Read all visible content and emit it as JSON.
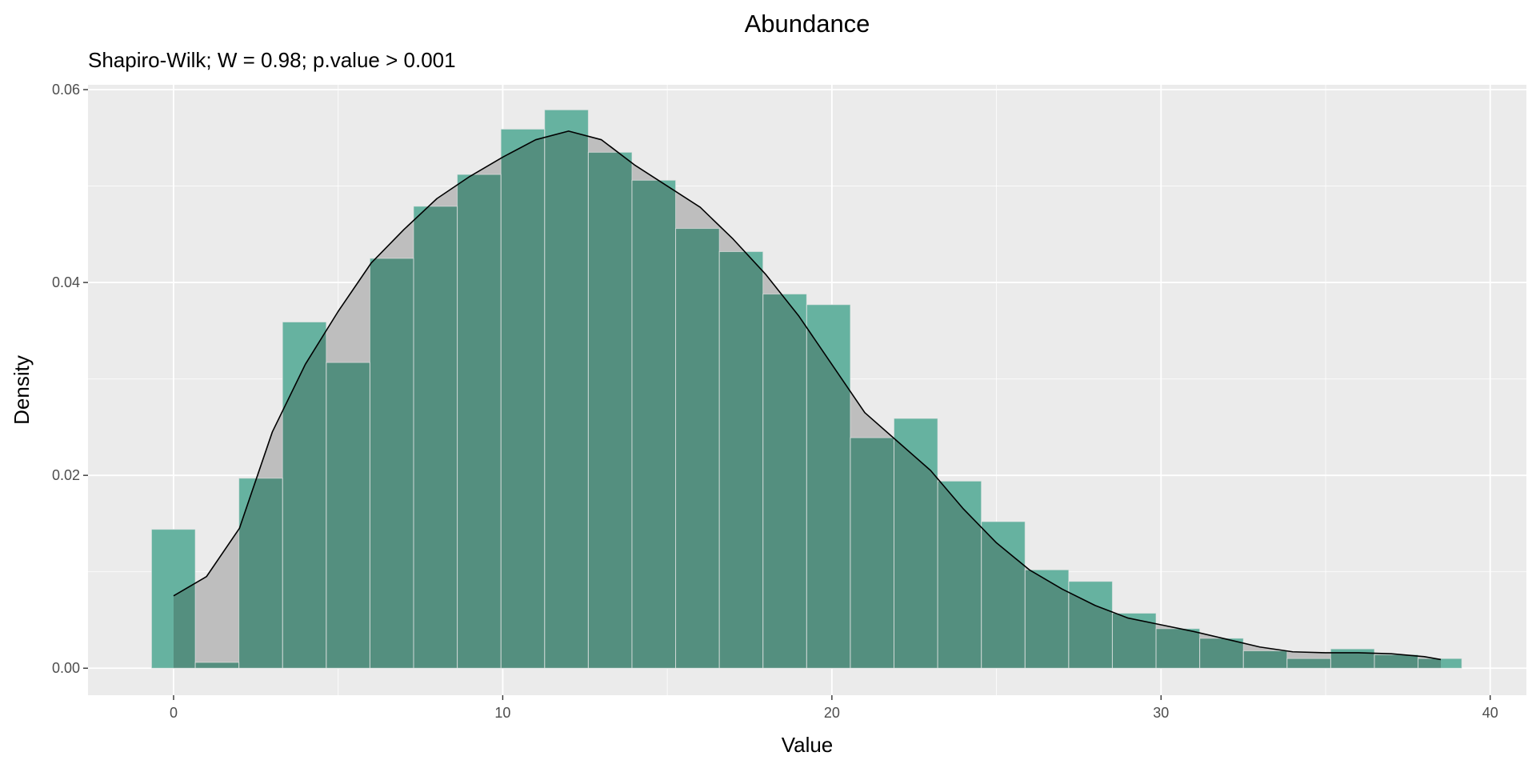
{
  "chart_data": {
    "type": "bar",
    "title": "Abundance",
    "subtitle": "Shapiro-Wilk; W = 0.98; p.value > 0.001",
    "xlabel": "Value",
    "ylabel": "Density",
    "xlim": [
      -2.6,
      41.1
    ],
    "ylim": [
      -0.0028,
      0.0605
    ],
    "x_ticks": [
      0,
      10,
      20,
      30,
      40
    ],
    "x_tick_labels": [
      "0",
      "10",
      "20",
      "30",
      "40"
    ],
    "y_ticks": [
      0.0,
      0.02,
      0.04,
      0.06
    ],
    "y_tick_labels": [
      "0.00",
      "0.02",
      "0.04",
      "0.06"
    ],
    "grid": true,
    "colors": {
      "panel_background": "#ebebeb",
      "grid_major": "#ffffff",
      "histogram_fill": "#66b2a0",
      "histogram_overlap_fill": "#548f7f",
      "density_fill": "#bebebe",
      "density_line": "#000000",
      "bar_outline": "#e6e6e6"
    },
    "histogram": {
      "bin_width": 1.3268,
      "bin_centers": [
        -0.0055,
        1.3213,
        2.6481,
        3.9749,
        5.3017,
        6.6285,
        7.9553,
        9.2821,
        10.6089,
        11.9357,
        13.2625,
        14.5893,
        15.9161,
        17.2429,
        18.5697,
        19.8965,
        21.2233,
        22.5501,
        23.8769,
        25.2037,
        26.5305,
        27.8573,
        29.1841,
        30.5109,
        31.8377,
        33.1645,
        34.4913,
        35.8181,
        37.1449,
        38.4717
      ],
      "density": [
        0.0144,
        0.0006,
        0.0197,
        0.0359,
        0.0317,
        0.0425,
        0.0479,
        0.0512,
        0.0559,
        0.0579,
        0.0535,
        0.0506,
        0.0456,
        0.0432,
        0.0388,
        0.0377,
        0.0239,
        0.0259,
        0.0194,
        0.0152,
        0.0102,
        0.009,
        0.0057,
        0.0041,
        0.0031,
        0.0018,
        0.001,
        0.002,
        0.0014,
        0.001
      ]
    },
    "density_curve": {
      "x": [
        0,
        1,
        2,
        3,
        4,
        5,
        6,
        7,
        8,
        9,
        10,
        11,
        12,
        13,
        14,
        15,
        16,
        17,
        18,
        19,
        20,
        21,
        22,
        23,
        24,
        25,
        26,
        27,
        28,
        29,
        30,
        31,
        32,
        33,
        34,
        35,
        36,
        37,
        38,
        38.5
      ],
      "y": [
        0.0075,
        0.0095,
        0.0145,
        0.0245,
        0.0315,
        0.037,
        0.042,
        0.0455,
        0.0487,
        0.051,
        0.053,
        0.0548,
        0.0557,
        0.0548,
        0.0522,
        0.05,
        0.0478,
        0.0445,
        0.0408,
        0.0365,
        0.0315,
        0.0265,
        0.0235,
        0.0205,
        0.0165,
        0.013,
        0.0102,
        0.0082,
        0.0065,
        0.0052,
        0.0045,
        0.0038,
        0.003,
        0.0022,
        0.0017,
        0.0016,
        0.0016,
        0.0015,
        0.0012,
        0.0009
      ]
    }
  }
}
